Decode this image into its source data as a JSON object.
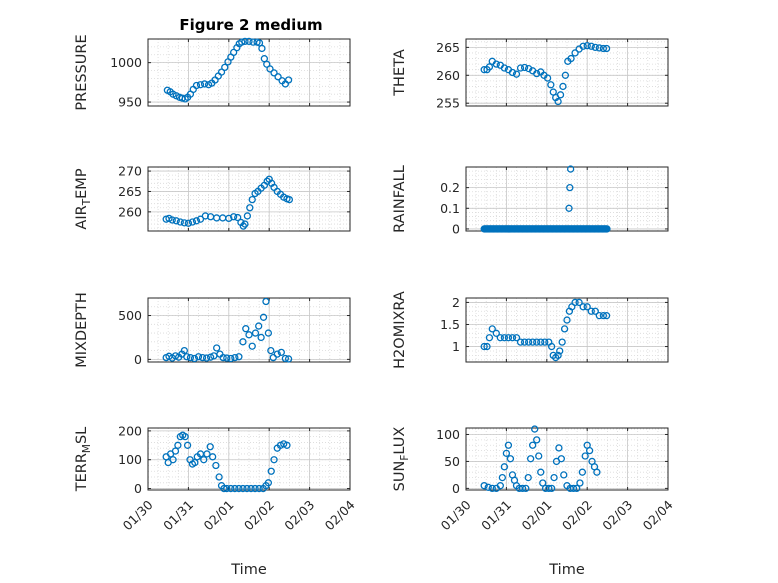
{
  "figure_title": "Figure 2 medium",
  "marker_color": "#0072bd",
  "chart_data": [
    {
      "id": "pressure",
      "type": "scatter",
      "title": "Figure 2 medium",
      "ylabel": "PRESSURE",
      "xlabel": "",
      "ylim": [
        945,
        1030
      ],
      "yticks": [
        950,
        1000
      ],
      "ytick_labels": [
        "950",
        "1000"
      ],
      "xlim": [
        0,
        5
      ],
      "xticks": [
        0,
        1,
        2,
        3,
        4,
        5
      ],
      "xtick_labels": [],
      "points": [
        [
          0.48,
          965
        ],
        [
          0.55,
          963
        ],
        [
          0.62,
          960
        ],
        [
          0.7,
          958
        ],
        [
          0.78,
          956
        ],
        [
          0.85,
          955
        ],
        [
          0.92,
          954
        ],
        [
          0.98,
          956
        ],
        [
          1.05,
          960
        ],
        [
          1.12,
          966
        ],
        [
          1.2,
          971
        ],
        [
          1.3,
          972
        ],
        [
          1.4,
          973
        ],
        [
          1.5,
          972
        ],
        [
          1.58,
          974
        ],
        [
          1.66,
          978
        ],
        [
          1.74,
          983
        ],
        [
          1.82,
          988
        ],
        [
          1.9,
          994
        ],
        [
          1.98,
          1001
        ],
        [
          2.05,
          1007
        ],
        [
          2.12,
          1013
        ],
        [
          2.2,
          1019
        ],
        [
          2.26,
          1024
        ],
        [
          2.32,
          1026
        ],
        [
          2.4,
          1027
        ],
        [
          2.5,
          1027
        ],
        [
          2.6,
          1026
        ],
        [
          2.7,
          1026
        ],
        [
          2.76,
          1025
        ],
        [
          2.82,
          1018
        ],
        [
          2.88,
          1005
        ],
        [
          2.94,
          998
        ],
        [
          3.02,
          992
        ],
        [
          3.12,
          987
        ],
        [
          3.22,
          982
        ],
        [
          3.32,
          977
        ],
        [
          3.4,
          973
        ],
        [
          3.48,
          978
        ]
      ]
    },
    {
      "id": "theta",
      "type": "scatter",
      "title": "",
      "ylabel": "THETA",
      "xlabel": "",
      "ylim": [
        254.5,
        266.5
      ],
      "yticks": [
        255,
        260,
        265
      ],
      "ytick_labels": [
        "255",
        "260",
        "265"
      ],
      "xlim": [
        0,
        5
      ],
      "xticks": [
        0,
        1,
        2,
        3,
        4,
        5
      ],
      "xtick_labels": [],
      "points": [
        [
          0.45,
          261
        ],
        [
          0.52,
          261
        ],
        [
          0.58,
          261.5
        ],
        [
          0.65,
          262.5
        ],
        [
          0.75,
          262
        ],
        [
          0.85,
          261.8
        ],
        [
          0.95,
          261.3
        ],
        [
          1.05,
          261
        ],
        [
          1.15,
          260.5
        ],
        [
          1.25,
          260.2
        ],
        [
          1.35,
          261.3
        ],
        [
          1.45,
          261.4
        ],
        [
          1.55,
          261.2
        ],
        [
          1.65,
          260.8
        ],
        [
          1.75,
          260.3
        ],
        [
          1.85,
          260.6
        ],
        [
          1.93,
          260
        ],
        [
          2.02,
          259.5
        ],
        [
          2.1,
          258.3
        ],
        [
          2.16,
          257
        ],
        [
          2.22,
          256
        ],
        [
          2.28,
          255.3
        ],
        [
          2.34,
          256.5
        ],
        [
          2.4,
          258
        ],
        [
          2.46,
          260
        ],
        [
          2.52,
          262.5
        ],
        [
          2.6,
          263
        ],
        [
          2.7,
          264
        ],
        [
          2.8,
          264.7
        ],
        [
          2.9,
          265.2
        ],
        [
          3.0,
          265.3
        ],
        [
          3.1,
          265.2
        ],
        [
          3.2,
          265
        ],
        [
          3.3,
          264.9
        ],
        [
          3.4,
          264.8
        ],
        [
          3.48,
          264.8
        ]
      ]
    },
    {
      "id": "air_temp",
      "type": "scatter",
      "title": "",
      "ylabel": "AIR_TEMP",
      "ylabel_main": "AIR",
      "ylabel_sub": "T",
      "ylabel_rest": "EMP",
      "xlabel": "",
      "ylim": [
        255.3,
        271
      ],
      "yticks": [
        260,
        265,
        270
      ],
      "ytick_labels": [
        "260",
        "265",
        "270"
      ],
      "xlim": [
        0,
        5
      ],
      "xticks": [
        0,
        1,
        2,
        3,
        4,
        5
      ],
      "xtick_labels": [],
      "points": [
        [
          0.45,
          258.2
        ],
        [
          0.52,
          258.4
        ],
        [
          0.6,
          258
        ],
        [
          0.7,
          257.8
        ],
        [
          0.8,
          257.5
        ],
        [
          0.9,
          257.3
        ],
        [
          1.0,
          257.2
        ],
        [
          1.1,
          257.5
        ],
        [
          1.2,
          257.8
        ],
        [
          1.3,
          258.2
        ],
        [
          1.42,
          259
        ],
        [
          1.55,
          258.8
        ],
        [
          1.7,
          258.5
        ],
        [
          1.85,
          258.5
        ],
        [
          2.0,
          258.4
        ],
        [
          2.12,
          258.8
        ],
        [
          2.22,
          258.6
        ],
        [
          2.3,
          257.4
        ],
        [
          2.36,
          256.5
        ],
        [
          2.4,
          257
        ],
        [
          2.46,
          259
        ],
        [
          2.52,
          261
        ],
        [
          2.58,
          263
        ],
        [
          2.65,
          264.5
        ],
        [
          2.72,
          265
        ],
        [
          2.8,
          265.8
        ],
        [
          2.88,
          266.5
        ],
        [
          2.95,
          267.5
        ],
        [
          3.0,
          268
        ],
        [
          3.06,
          267
        ],
        [
          3.12,
          266
        ],
        [
          3.2,
          265
        ],
        [
          3.28,
          264.3
        ],
        [
          3.36,
          263.6
        ],
        [
          3.44,
          263.2
        ],
        [
          3.5,
          263
        ]
      ]
    },
    {
      "id": "rainfall",
      "type": "scatter",
      "title": "",
      "ylabel": "RAINFALL",
      "xlabel": "",
      "ylim": [
        -0.01,
        0.3
      ],
      "yticks": [
        0,
        0.1,
        0.2
      ],
      "ytick_labels": [
        "0",
        "0.1",
        "0.2"
      ],
      "xlim": [
        0,
        5
      ],
      "xticks": [
        0,
        1,
        2,
        3,
        4,
        5
      ],
      "xtick_labels": [],
      "baseline_range": [
        0.45,
        3.5
      ],
      "baseline_value": 0,
      "points": [
        [
          2.55,
          0.1
        ],
        [
          2.57,
          0.2
        ],
        [
          2.59,
          0.29
        ]
      ]
    },
    {
      "id": "mixdepth",
      "type": "scatter",
      "title": "",
      "ylabel": "MIXDEPTH",
      "xlabel": "",
      "ylim": [
        -30,
        700
      ],
      "yticks": [
        0,
        500
      ],
      "ytick_labels": [
        "0",
        "500"
      ],
      "xlim": [
        0,
        5
      ],
      "xticks": [
        0,
        1,
        2,
        3,
        4,
        5
      ],
      "xtick_labels": [],
      "points": [
        [
          0.45,
          20
        ],
        [
          0.52,
          35
        ],
        [
          0.6,
          15
        ],
        [
          0.68,
          40
        ],
        [
          0.76,
          25
        ],
        [
          0.84,
          60
        ],
        [
          0.9,
          100
        ],
        [
          0.96,
          30
        ],
        [
          1.05,
          20
        ],
        [
          1.15,
          10
        ],
        [
          1.25,
          30
        ],
        [
          1.35,
          20
        ],
        [
          1.45,
          15
        ],
        [
          1.55,
          25
        ],
        [
          1.63,
          40
        ],
        [
          1.7,
          130
        ],
        [
          1.78,
          60
        ],
        [
          1.86,
          20
        ],
        [
          1.95,
          15
        ],
        [
          2.05,
          10
        ],
        [
          2.15,
          20
        ],
        [
          2.25,
          30
        ],
        [
          2.35,
          200
        ],
        [
          2.42,
          350
        ],
        [
          2.5,
          280
        ],
        [
          2.58,
          150
        ],
        [
          2.66,
          300
        ],
        [
          2.74,
          380
        ],
        [
          2.8,
          250
        ],
        [
          2.86,
          480
        ],
        [
          2.92,
          660
        ],
        [
          2.98,
          300
        ],
        [
          3.04,
          100
        ],
        [
          3.1,
          20
        ],
        [
          3.2,
          60
        ],
        [
          3.3,
          80
        ],
        [
          3.4,
          10
        ],
        [
          3.48,
          5
        ]
      ]
    },
    {
      "id": "h2omixra",
      "type": "scatter",
      "title": "",
      "ylabel": "H2OMIXRA",
      "xlabel": "",
      "ylim": [
        0.65,
        2.1
      ],
      "yticks": [
        1,
        1.5,
        2
      ],
      "ytick_labels": [
        "1",
        "1.5",
        "2"
      ],
      "xlim": [
        0,
        5
      ],
      "xticks": [
        0,
        1,
        2,
        3,
        4,
        5
      ],
      "xtick_labels": [],
      "points": [
        [
          0.45,
          1.0
        ],
        [
          0.52,
          1.0
        ],
        [
          0.58,
          1.2
        ],
        [
          0.65,
          1.4
        ],
        [
          0.75,
          1.3
        ],
        [
          0.85,
          1.2
        ],
        [
          0.95,
          1.2
        ],
        [
          1.05,
          1.2
        ],
        [
          1.15,
          1.2
        ],
        [
          1.25,
          1.2
        ],
        [
          1.35,
          1.1
        ],
        [
          1.45,
          1.1
        ],
        [
          1.55,
          1.1
        ],
        [
          1.65,
          1.1
        ],
        [
          1.75,
          1.1
        ],
        [
          1.85,
          1.1
        ],
        [
          1.95,
          1.1
        ],
        [
          2.05,
          1.1
        ],
        [
          2.12,
          1.0
        ],
        [
          2.16,
          0.8
        ],
        [
          2.22,
          0.75
        ],
        [
          2.28,
          0.8
        ],
        [
          2.32,
          0.9
        ],
        [
          2.38,
          1.1
        ],
        [
          2.44,
          1.4
        ],
        [
          2.5,
          1.6
        ],
        [
          2.56,
          1.8
        ],
        [
          2.62,
          1.9
        ],
        [
          2.7,
          2.0
        ],
        [
          2.8,
          2.0
        ],
        [
          2.9,
          1.9
        ],
        [
          3.0,
          1.9
        ],
        [
          3.1,
          1.8
        ],
        [
          3.2,
          1.8
        ],
        [
          3.3,
          1.7
        ],
        [
          3.4,
          1.7
        ],
        [
          3.48,
          1.7
        ]
      ]
    },
    {
      "id": "terr_msl",
      "type": "scatter",
      "title": "",
      "ylabel": "TERR_MSL",
      "ylabel_main": "TERR",
      "ylabel_sub": "M",
      "ylabel_rest": "SL",
      "xlabel": "Time",
      "ylim": [
        -5,
        210
      ],
      "yticks": [
        0,
        100,
        200
      ],
      "ytick_labels": [
        "0",
        "100",
        "200"
      ],
      "xlim": [
        0,
        5
      ],
      "xticks": [
        0,
        1,
        2,
        3,
        4,
        5
      ],
      "xtick_labels": [
        "01/30",
        "01/31",
        "02/01",
        "02/02",
        "02/03",
        "02/04"
      ],
      "points": [
        [
          0.45,
          110
        ],
        [
          0.5,
          90
        ],
        [
          0.56,
          120
        ],
        [
          0.62,
          100
        ],
        [
          0.68,
          130
        ],
        [
          0.74,
          150
        ],
        [
          0.8,
          180
        ],
        [
          0.86,
          185
        ],
        [
          0.92,
          180
        ],
        [
          0.98,
          150
        ],
        [
          1.04,
          100
        ],
        [
          1.1,
          85
        ],
        [
          1.16,
          90
        ],
        [
          1.22,
          110
        ],
        [
          1.3,
          120
        ],
        [
          1.38,
          100
        ],
        [
          1.46,
          120
        ],
        [
          1.54,
          145
        ],
        [
          1.6,
          110
        ],
        [
          1.68,
          80
        ],
        [
          1.76,
          40
        ],
        [
          1.82,
          10
        ],
        [
          1.88,
          0
        ],
        [
          1.95,
          0
        ],
        [
          2.05,
          0
        ],
        [
          2.15,
          0
        ],
        [
          2.25,
          0
        ],
        [
          2.35,
          0
        ],
        [
          2.45,
          0
        ],
        [
          2.55,
          0
        ],
        [
          2.65,
          0
        ],
        [
          2.75,
          0
        ],
        [
          2.85,
          0
        ],
        [
          2.92,
          10
        ],
        [
          2.98,
          20
        ],
        [
          3.05,
          60
        ],
        [
          3.12,
          100
        ],
        [
          3.2,
          140
        ],
        [
          3.28,
          150
        ],
        [
          3.36,
          155
        ],
        [
          3.44,
          150
        ]
      ]
    },
    {
      "id": "sun_flux",
      "type": "scatter",
      "title": "",
      "ylabel": "SUN_FLUX",
      "ylabel_main": "SUN",
      "ylabel_sub": "F",
      "ylabel_rest": "LUX",
      "xlabel": "Time",
      "ylim": [
        -3,
        112
      ],
      "yticks": [
        0,
        50,
        100
      ],
      "ytick_labels": [
        "0",
        "50",
        "100"
      ],
      "xlim": [
        0,
        5
      ],
      "xticks": [
        0,
        1,
        2,
        3,
        4,
        5
      ],
      "xtick_labels": [
        "01/30",
        "01/31",
        "02/01",
        "02/02",
        "02/03",
        "02/04"
      ],
      "points": [
        [
          0.45,
          5
        ],
        [
          0.55,
          2
        ],
        [
          0.65,
          0
        ],
        [
          0.75,
          0
        ],
        [
          0.85,
          5
        ],
        [
          0.9,
          20
        ],
        [
          0.95,
          40
        ],
        [
          1.0,
          65
        ],
        [
          1.05,
          80
        ],
        [
          1.1,
          55
        ],
        [
          1.15,
          25
        ],
        [
          1.2,
          15
        ],
        [
          1.25,
          5
        ],
        [
          1.32,
          0
        ],
        [
          1.4,
          0
        ],
        [
          1.48,
          0
        ],
        [
          1.54,
          20
        ],
        [
          1.6,
          55
        ],
        [
          1.65,
          80
        ],
        [
          1.7,
          110
        ],
        [
          1.75,
          90
        ],
        [
          1.8,
          60
        ],
        [
          1.85,
          30
        ],
        [
          1.9,
          10
        ],
        [
          1.97,
          0
        ],
        [
          2.05,
          0
        ],
        [
          2.12,
          0
        ],
        [
          2.18,
          20
        ],
        [
          2.24,
          50
        ],
        [
          2.3,
          75
        ],
        [
          2.36,
          55
        ],
        [
          2.42,
          25
        ],
        [
          2.5,
          5
        ],
        [
          2.58,
          0
        ],
        [
          2.66,
          0
        ],
        [
          2.74,
          0
        ],
        [
          2.82,
          10
        ],
        [
          2.88,
          30
        ],
        [
          2.95,
          60
        ],
        [
          3.0,
          80
        ],
        [
          3.06,
          70
        ],
        [
          3.12,
          50
        ],
        [
          3.18,
          40
        ],
        [
          3.24,
          30
        ]
      ]
    }
  ]
}
